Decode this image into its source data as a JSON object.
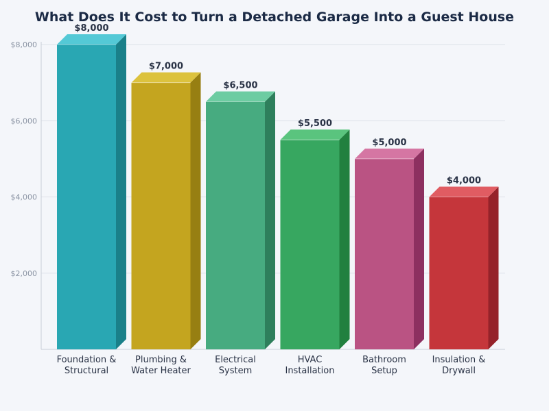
{
  "title": "What Does It Cost to Turn a Detached Garage Into a Guest House",
  "chart_data": {
    "type": "bar",
    "title": "What Does It Cost to Turn a Detached Garage Into a Guest House",
    "categories": [
      [
        "Foundation &",
        "Structural"
      ],
      [
        "Plumbing &",
        "Water Heater"
      ],
      [
        "Electrical",
        "System"
      ],
      [
        "HVAC",
        "Installation"
      ],
      [
        "Bathroom",
        "Setup"
      ],
      [
        "Insulation &",
        "Drywall"
      ]
    ],
    "values": [
      8000,
      7000,
      6500,
      5500,
      5000,
      4000
    ],
    "data_labels": [
      "$8,000",
      "$7,000",
      "$6,500",
      "$5,500",
      "$5,000",
      "$4,000"
    ],
    "y_ticks": [
      {
        "value": 2000,
        "label": "$2,000"
      },
      {
        "value": 4000,
        "label": "$4,000"
      },
      {
        "value": 6000,
        "label": "$6,000"
      },
      {
        "value": 8000,
        "label": "$8,000"
      }
    ],
    "ylim": [
      0,
      8000
    ],
    "grid": true,
    "style": "3d",
    "colors": [
      {
        "front": "#29a7b3",
        "top": "#54c9d6",
        "side": "#1a8089"
      },
      {
        "front": "#c4a51f",
        "top": "#dcc23d",
        "side": "#977f12"
      },
      {
        "front": "#47ab80",
        "top": "#6dcca2",
        "side": "#2e7f5c"
      },
      {
        "front": "#37a760",
        "top": "#5ac47e",
        "side": "#21803f"
      },
      {
        "front": "#ba5383",
        "top": "#d576a3",
        "side": "#8d3060"
      },
      {
        "front": "#c5363b",
        "top": "#e05c62",
        "side": "#95222a"
      }
    ]
  }
}
